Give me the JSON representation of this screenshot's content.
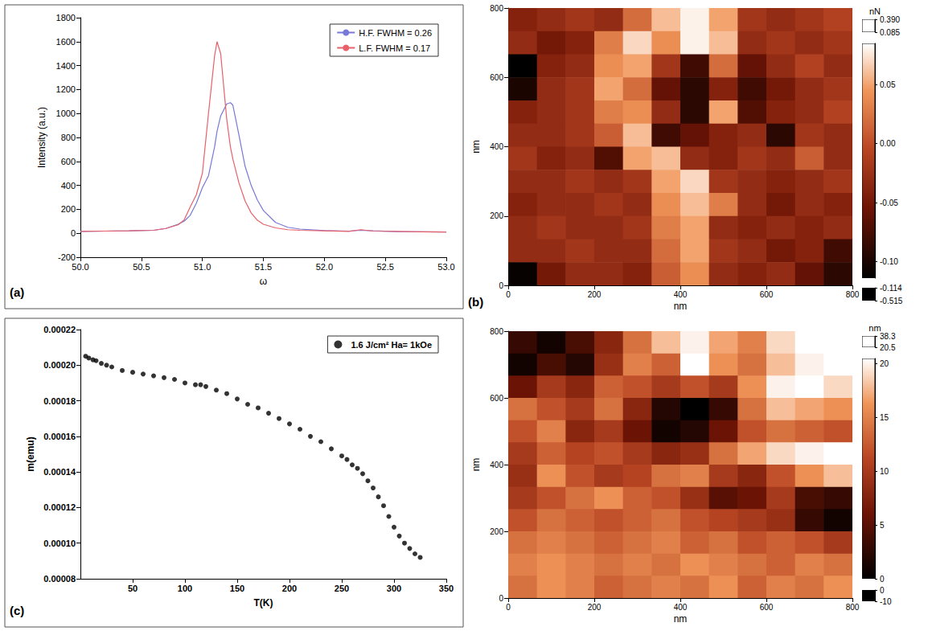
{
  "chart_data": [
    {
      "label": "(a)",
      "type": "line",
      "x_label": "ω",
      "y_label": "Intensity (a.u.)",
      "xlim": [
        50,
        53
      ],
      "xticks": [
        {
          "value": 50,
          "label": "50.0"
        },
        50.5,
        {
          "value": 51,
          "label": "51.0"
        },
        51.5,
        {
          "value": 52,
          "label": "52.0"
        },
        52.5,
        {
          "value": 53,
          "label": "53.0"
        }
      ],
      "ylim": [
        -200,
        1800
      ],
      "yticks": [
        -200,
        0,
        200,
        400,
        600,
        800,
        1000,
        1200,
        1400,
        1600,
        1800
      ],
      "grid": false,
      "legend": "upper right",
      "x": [
        50.0,
        50.2,
        50.4,
        50.6,
        50.7,
        50.8,
        50.85,
        50.9,
        50.95,
        51.0,
        51.05,
        51.1,
        51.12,
        51.15,
        51.2,
        51.23,
        51.25,
        51.3,
        51.35,
        51.4,
        51.45,
        51.5,
        51.6,
        51.7,
        51.8,
        52.0,
        52.2,
        52.3,
        52.4,
        52.6,
        52.8,
        53.0
      ],
      "series": [
        {
          "name": "H.F. FWHM = 0.26",
          "color": "#7878d8",
          "line_style": "solid",
          "values": [
            15,
            18,
            20,
            25,
            40,
            75,
            100,
            150,
            250,
            380,
            480,
            720,
            850,
            980,
            1080,
            1090,
            1070,
            820,
            560,
            400,
            280,
            190,
            90,
            50,
            35,
            22,
            18,
            25,
            20,
            14,
            12,
            10
          ]
        },
        {
          "name": "L.F. FWHM = 0.17",
          "color": "#e8606a",
          "line_style": "solid",
          "values": [
            15,
            18,
            20,
            25,
            40,
            70,
            110,
            220,
            320,
            500,
            1000,
            1480,
            1600,
            1500,
            950,
            720,
            620,
            420,
            270,
            170,
            110,
            75,
            45,
            30,
            25,
            20,
            15,
            30,
            18,
            15,
            12,
            10
          ]
        }
      ]
    },
    {
      "label": "(c)",
      "type": "scatter",
      "x_label": "T(K)",
      "y_label": "m(emu)",
      "xlim": [
        0,
        350
      ],
      "xticks": [
        50,
        100,
        150,
        200,
        250,
        300,
        350
      ],
      "ylim": [
        8e-05,
        0.00022
      ],
      "yticks": [
        8e-05,
        {
          "value": 0.0001,
          "label": "0.00010"
        },
        0.00012,
        0.00014,
        0.00016,
        0.00018,
        {
          "value": 0.0002,
          "label": "0.00020"
        },
        0.00022
      ],
      "grid": false,
      "legend": "upper right",
      "x": [
        5,
        8,
        12,
        15,
        20,
        25,
        30,
        40,
        50,
        60,
        70,
        80,
        90,
        100,
        110,
        115,
        120,
        130,
        140,
        150,
        160,
        170,
        180,
        190,
        200,
        210,
        220,
        230,
        240,
        250,
        255,
        260,
        265,
        270,
        275,
        280,
        285,
        290,
        295,
        300,
        305,
        310,
        315,
        320,
        325
      ],
      "series": [
        {
          "name": "1.6 J/cm² Ha= 1kOe",
          "color": "#000000",
          "marker": "circle",
          "values": [
            0.000205,
            0.000204,
            0.000203,
            0.0002025,
            0.000201,
            0.0002,
            0.000199,
            0.000197,
            0.000196,
            0.000195,
            0.000194,
            0.000193,
            0.000192,
            0.00019,
            0.000189,
            0.000189,
            0.000188,
            0.000186,
            0.000184,
            0.000181,
            0.000178,
            0.000176,
            0.000173,
            0.00017,
            0.000167,
            0.000164,
            0.00016,
            0.000157,
            0.000153,
            0.000149,
            0.000147,
            0.000144,
            0.000142,
            0.000139,
            0.000135,
            0.000131,
            0.000126,
            0.000121,
            0.000115,
            0.000109,
            0.000104,
            0.0001,
            9.7e-05,
            9.4e-05,
            9.2e-05
          ]
        }
      ]
    },
    {
      "label": "(b)",
      "type": "heatmap",
      "x_label": "nm",
      "y_label": "nm",
      "xlim": [
        0,
        800
      ],
      "xticks": [
        0,
        200,
        400,
        600,
        800
      ],
      "ylim": [
        0,
        800
      ],
      "yticks": [
        0,
        200,
        400,
        600,
        800
      ],
      "cells": [
        [
          -0.04,
          -0.03,
          -0.02,
          -0.03,
          0.02,
          0.06,
          0.08,
          0.05,
          -0.02,
          -0.03,
          -0.02,
          -0.01
        ],
        [
          -0.03,
          -0.05,
          -0.04,
          0.03,
          0.07,
          0.04,
          0.08,
          0.06,
          -0.03,
          -0.02,
          -0.03,
          -0.02
        ],
        [
          -0.12,
          -0.04,
          -0.03,
          0.04,
          0.05,
          -0.02,
          -0.08,
          0.02,
          -0.06,
          -0.03,
          -0.01,
          -0.03
        ],
        [
          -0.1,
          -0.03,
          -0.02,
          0.05,
          0.02,
          -0.06,
          -0.09,
          -0.04,
          -0.08,
          -0.05,
          -0.03,
          -0.02
        ],
        [
          -0.04,
          -0.03,
          -0.02,
          0.03,
          0.04,
          -0.03,
          -0.09,
          0.05,
          -0.07,
          -0.04,
          -0.03,
          -0.01
        ],
        [
          -0.03,
          -0.03,
          -0.02,
          0.01,
          0.06,
          -0.08,
          -0.06,
          -0.04,
          -0.03,
          -0.09,
          -0.02,
          -0.03
        ],
        [
          -0.02,
          -0.04,
          -0.03,
          -0.07,
          0.05,
          0.06,
          -0.03,
          -0.04,
          -0.02,
          -0.03,
          0.01,
          -0.03
        ],
        [
          -0.03,
          -0.03,
          -0.02,
          -0.03,
          -0.02,
          0.05,
          0.07,
          -0.02,
          -0.03,
          -0.04,
          -0.03,
          -0.02
        ],
        [
          -0.04,
          -0.03,
          -0.03,
          -0.02,
          -0.03,
          0.04,
          0.06,
          0.03,
          -0.03,
          -0.05,
          -0.03,
          -0.04
        ],
        [
          -0.03,
          -0.02,
          -0.03,
          -0.03,
          -0.02,
          0.03,
          0.05,
          -0.03,
          -0.04,
          -0.03,
          -0.04,
          -0.03
        ],
        [
          -0.03,
          -0.03,
          -0.02,
          -0.03,
          -0.03,
          0.02,
          0.05,
          -0.02,
          -0.03,
          -0.05,
          -0.04,
          -0.08
        ],
        [
          -0.11,
          -0.05,
          -0.03,
          -0.03,
          -0.04,
          0.01,
          0.04,
          -0.03,
          -0.04,
          -0.03,
          -0.06,
          -0.09
        ]
      ],
      "colorbar": {
        "unit": "nN",
        "range": [
          -0.114,
          0.085
        ],
        "ticks": [
          {
            "value": -0.1,
            "label": "-0.10"
          },
          -0.05,
          {
            "value": 0,
            "label": "0.00"
          },
          0.05
        ],
        "over": [
          0.085,
          {
            "value": 0.39,
            "label": "0.390"
          }
        ],
        "under": [
          -0.515,
          -0.114
        ]
      }
    },
    {
      "type": "heatmap",
      "x_label": "nm",
      "y_label": "nm",
      "xlim": [
        0,
        800
      ],
      "xticks": [
        0,
        200,
        400,
        600,
        800
      ],
      "ylim": [
        0,
        800
      ],
      "yticks": [
        0,
        200,
        400,
        600,
        800
      ],
      "cells": [
        [
          3,
          1,
          4,
          8,
          14,
          18,
          20,
          17,
          15,
          19,
          22,
          25
        ],
        [
          1,
          4,
          2,
          9,
          15,
          13,
          22,
          16,
          14,
          18,
          20,
          21
        ],
        [
          6,
          10,
          8,
          13,
          12,
          10,
          12,
          10,
          16,
          20,
          22,
          19
        ],
        [
          14,
          12,
          10,
          14,
          8,
          2,
          0,
          3,
          14,
          18,
          17,
          16
        ],
        [
          12,
          15,
          8,
          10,
          6,
          1,
          2,
          6,
          12,
          14,
          13,
          12
        ],
        [
          10,
          13,
          11,
          12,
          10,
          8,
          9,
          14,
          17,
          19,
          20,
          21
        ],
        [
          9,
          16,
          12,
          10,
          11,
          14,
          15,
          10,
          8,
          12,
          16,
          18
        ],
        [
          10,
          12,
          14,
          16,
          13,
          12,
          9,
          5,
          6,
          10,
          4,
          3
        ],
        [
          12,
          14,
          13,
          12,
          13,
          14,
          12,
          11,
          10,
          9,
          3,
          1
        ],
        [
          14,
          15,
          14,
          13,
          14,
          15,
          13,
          14,
          12,
          13,
          12,
          10
        ],
        [
          15,
          16,
          15,
          14,
          15,
          14,
          16,
          15,
          14,
          13,
          15,
          14
        ],
        [
          14,
          16,
          15,
          13,
          14,
          15,
          14,
          16,
          13,
          15,
          14,
          16
        ]
      ],
      "colorbar": {
        "unit": "nm",
        "range": [
          0,
          20.5
        ],
        "ticks": [
          0,
          5,
          10,
          15,
          20
        ],
        "over": [
          20.5,
          38.3
        ],
        "under": [
          -10,
          0
        ]
      }
    }
  ]
}
